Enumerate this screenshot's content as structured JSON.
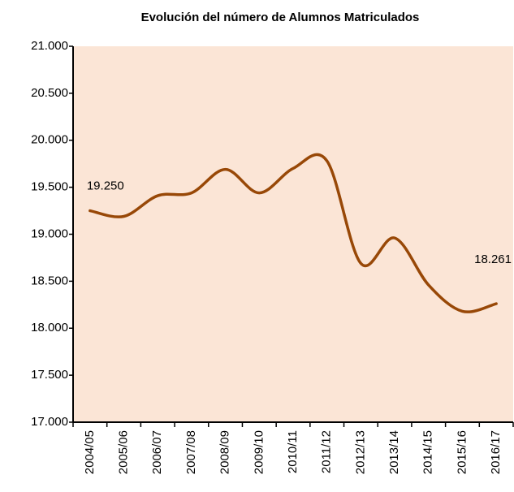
{
  "chart_data": {
    "type": "line",
    "title": "Evolución del número de Alumnos Matriculados",
    "categories": [
      "2004/05",
      "2005/06",
      "2006/07",
      "2007/08",
      "2008/09",
      "2009/10",
      "2010/11",
      "2011/12",
      "2012/13",
      "2013/14",
      "2014/15",
      "2015/16",
      "2016/17"
    ],
    "series": [
      {
        "name": "Alumnos Matriculados",
        "color": "#984807",
        "values": [
          19250,
          19190,
          19410,
          19440,
          19690,
          19440,
          19700,
          19780,
          18690,
          18960,
          18460,
          18180,
          18261
        ],
        "value_labels": [
          "19.250",
          null,
          null,
          null,
          null,
          null,
          null,
          null,
          null,
          null,
          null,
          null,
          "18.261"
        ]
      }
    ],
    "ylim": [
      17000,
      21000
    ],
    "yticks": [
      {
        "value": 17000,
        "label": "17.000"
      },
      {
        "value": 17500,
        "label": "17.500"
      },
      {
        "value": 18000,
        "label": "18.000"
      },
      {
        "value": 18500,
        "label": "18.500"
      },
      {
        "value": 19000,
        "label": "19.000"
      },
      {
        "value": 19500,
        "label": "19.500"
      },
      {
        "value": 20000,
        "label": "20.000"
      },
      {
        "value": 20500,
        "label": "20.500"
      },
      {
        "value": 21000,
        "label": "21.000"
      }
    ],
    "plot_background": "#fbe5d6",
    "grid": false,
    "smooth": true
  }
}
